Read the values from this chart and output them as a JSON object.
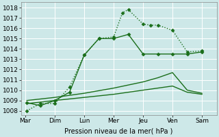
{
  "xlabel": "Pression niveau de la mer( hPa )",
  "background_color": "#cde8e8",
  "grid_color": "#a8d8d8",
  "line_color": "#1a6e1a",
  "xlabels": [
    "Mar",
    "Dim",
    "Lun",
    "Mer",
    "Jeu",
    "Ven",
    "Sam"
  ],
  "x_positions": [
    0,
    1,
    2,
    3,
    4,
    5,
    6
  ],
  "xlim": [
    -0.15,
    6.5
  ],
  "ylim": [
    1007.6,
    1018.5
  ],
  "yticks": [
    1008,
    1009,
    1010,
    1011,
    1012,
    1013,
    1014,
    1015,
    1016,
    1017,
    1018
  ],
  "series": [
    {
      "x": [
        0.05,
        0.5,
        1.0,
        1.5,
        2.0,
        2.5,
        3.0,
        3.3,
        3.5,
        4.0,
        4.25,
        4.5,
        5.0,
        5.5,
        6.0
      ],
      "y": [
        1008.0,
        1008.7,
        1008.7,
        1010.3,
        1013.4,
        1015.0,
        1015.15,
        1017.5,
        1017.8,
        1016.4,
        1016.3,
        1016.3,
        1015.8,
        1013.7,
        1013.8
      ],
      "marker": "D",
      "markersize": 2.5,
      "linestyle": ":",
      "linewidth": 1.0,
      "zorder": 4
    },
    {
      "x": [
        0.05,
        0.5,
        1.0,
        1.5,
        2.0,
        2.5,
        3.0,
        3.5,
        4.0,
        4.5,
        5.0,
        5.5,
        6.0
      ],
      "y": [
        1008.8,
        1008.5,
        1009.0,
        1009.8,
        1013.4,
        1015.0,
        1015.0,
        1015.4,
        1013.5,
        1013.5,
        1013.5,
        1013.5,
        1013.7
      ],
      "marker": "D",
      "markersize": 2.5,
      "linestyle": "-",
      "linewidth": 1.0,
      "zorder": 3
    },
    {
      "x": [
        0.05,
        1.0,
        2.0,
        3.0,
        3.5,
        4.0,
        4.5,
        5.0,
        5.5,
        6.0
      ],
      "y": [
        1009.0,
        1009.3,
        1009.7,
        1010.2,
        1010.5,
        1010.8,
        1011.2,
        1011.7,
        1010.0,
        1009.7
      ],
      "marker": "None",
      "markersize": 0,
      "linestyle": "-",
      "linewidth": 1.0,
      "zorder": 2
    },
    {
      "x": [
        0.05,
        1.0,
        2.0,
        3.0,
        3.5,
        4.0,
        4.5,
        5.0,
        5.5,
        6.0
      ],
      "y": [
        1008.7,
        1009.0,
        1009.3,
        1009.6,
        1009.8,
        1010.0,
        1010.2,
        1010.4,
        1009.8,
        1009.6
      ],
      "marker": "None",
      "markersize": 0,
      "linestyle": "-",
      "linewidth": 1.0,
      "zorder": 2
    }
  ]
}
